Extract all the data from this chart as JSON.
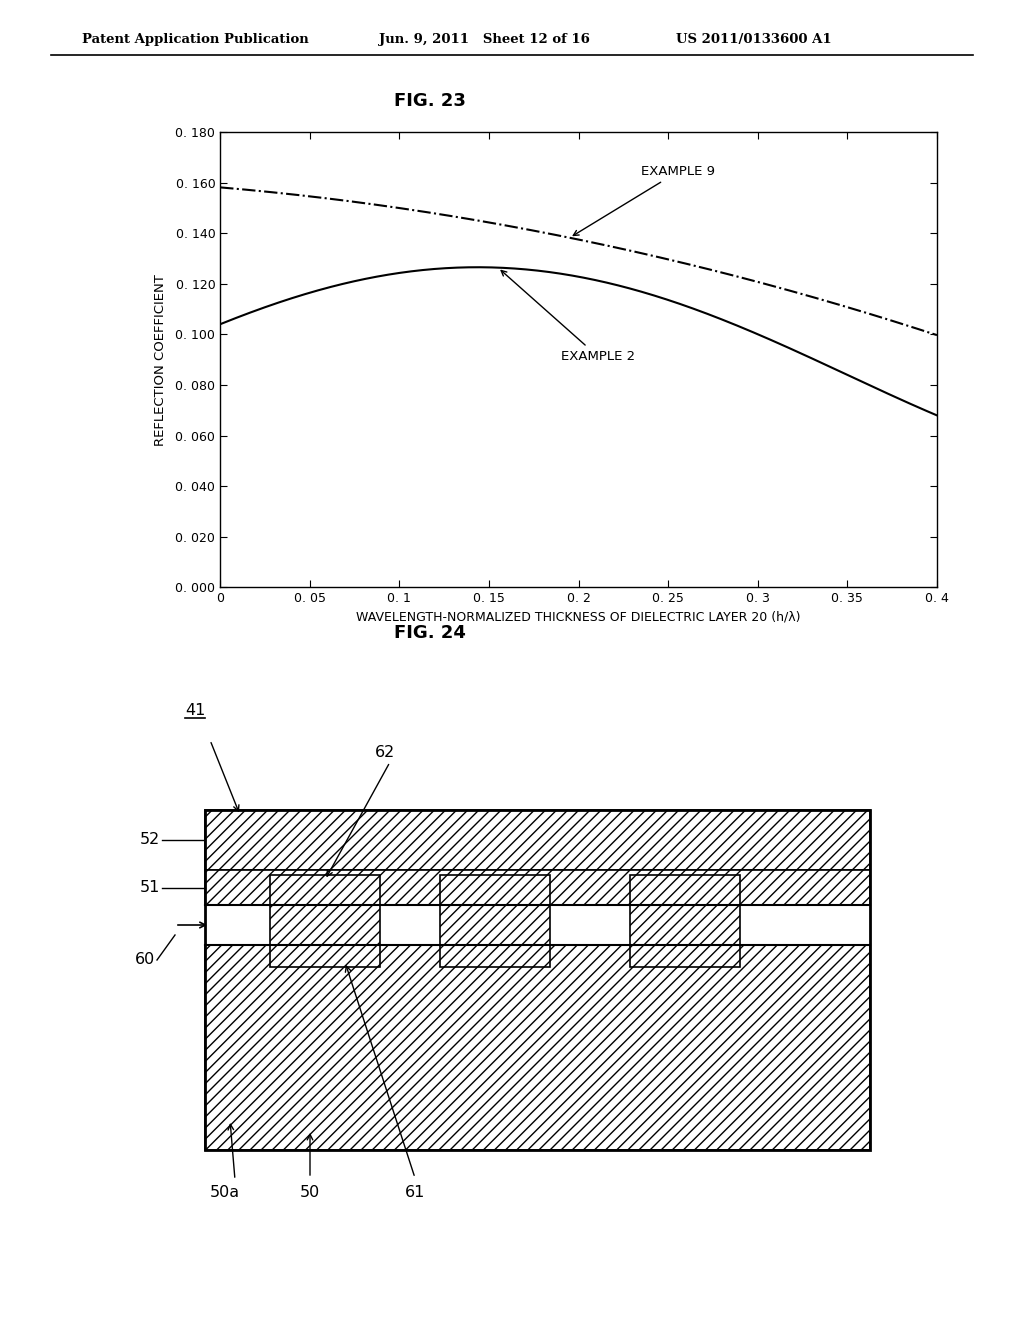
{
  "header_left": "Patent Application Publication",
  "header_mid": "Jun. 9, 2011   Sheet 12 of 16",
  "header_right": "US 2011/0133600 A1",
  "fig23_title": "FIG. 23",
  "fig24_title": "FIG. 24",
  "ylabel": "REFLECTION COEFFICIENT",
  "xlabel": "WAVELENGTH-NORMALIZED THICKNESS OF DIELECTRIC LAYER 20 (h/λ)",
  "xlim": [
    0,
    0.4
  ],
  "ylim": [
    0.0,
    0.18
  ],
  "yticks": [
    0.0,
    0.02,
    0.04,
    0.06,
    0.08,
    0.1,
    0.12,
    0.14,
    0.16,
    0.18
  ],
  "xticks": [
    0,
    0.05,
    0.1,
    0.15,
    0.2,
    0.25,
    0.3,
    0.35,
    0.4
  ],
  "xtick_labels": [
    "0",
    "0. 05",
    "0. 1",
    "0. 15",
    "0. 2",
    "0. 25",
    "0. 3",
    "0. 35",
    "0. 4"
  ],
  "ytick_labels": [
    "0. 000",
    "0. 020",
    "0. 040",
    "0. 060",
    "0. 080",
    "0. 100",
    "0. 120",
    "0. 140",
    "0. 160",
    "0. 180"
  ],
  "example2_label": "EXAMPLE 2",
  "example9_label": "EXAMPLE 9",
  "bg_color": "#ffffff",
  "line_color": "#000000",
  "ex2_points_x": [
    0,
    0.08,
    0.13,
    0.2,
    0.3,
    0.4
  ],
  "ex2_points_y": [
    0.104,
    0.122,
    0.126,
    0.123,
    0.1,
    0.068
  ],
  "ex9_points_x": [
    0,
    0.1,
    0.2,
    0.3,
    0.4
  ],
  "ex9_points_y": [
    0.158,
    0.15,
    0.138,
    0.12,
    0.1
  ]
}
